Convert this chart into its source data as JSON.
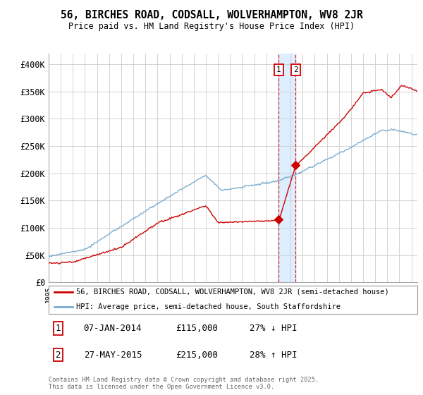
{
  "title_line1": "56, BIRCHES ROAD, CODSALL, WOLVERHAMPTON, WV8 2JR",
  "title_line2": "Price paid vs. HM Land Registry's House Price Index (HPI)",
  "ylabel_ticks": [
    "£0",
    "£50K",
    "£100K",
    "£150K",
    "£200K",
    "£250K",
    "£300K",
    "£350K",
    "£400K"
  ],
  "ytick_values": [
    0,
    50000,
    100000,
    150000,
    200000,
    250000,
    300000,
    350000,
    400000
  ],
  "ylim": [
    0,
    420000
  ],
  "legend_line1": "56, BIRCHES ROAD, CODSALL, WOLVERHAMPTON, WV8 2JR (semi-detached house)",
  "legend_line2": "HPI: Average price, semi-detached house, South Staffordshire",
  "transaction1_date": "07-JAN-2014",
  "transaction1_price": "£115,000",
  "transaction1_hpi": "27% ↓ HPI",
  "transaction1_year": 2014.03,
  "transaction1_value": 115000,
  "transaction2_date": "27-MAY-2015",
  "transaction2_price": "£215,000",
  "transaction2_hpi": "28% ↑ HPI",
  "transaction2_year": 2015.41,
  "transaction2_value": 215000,
  "footer": "Contains HM Land Registry data © Crown copyright and database right 2025.\nThis data is licensed under the Open Government Licence v3.0.",
  "line_color_red": "#cc0000",
  "line_color_blue": "#7aadcf",
  "shade_color": "#ddeeff",
  "background_color": "#ffffff",
  "grid_color": "#cccccc"
}
